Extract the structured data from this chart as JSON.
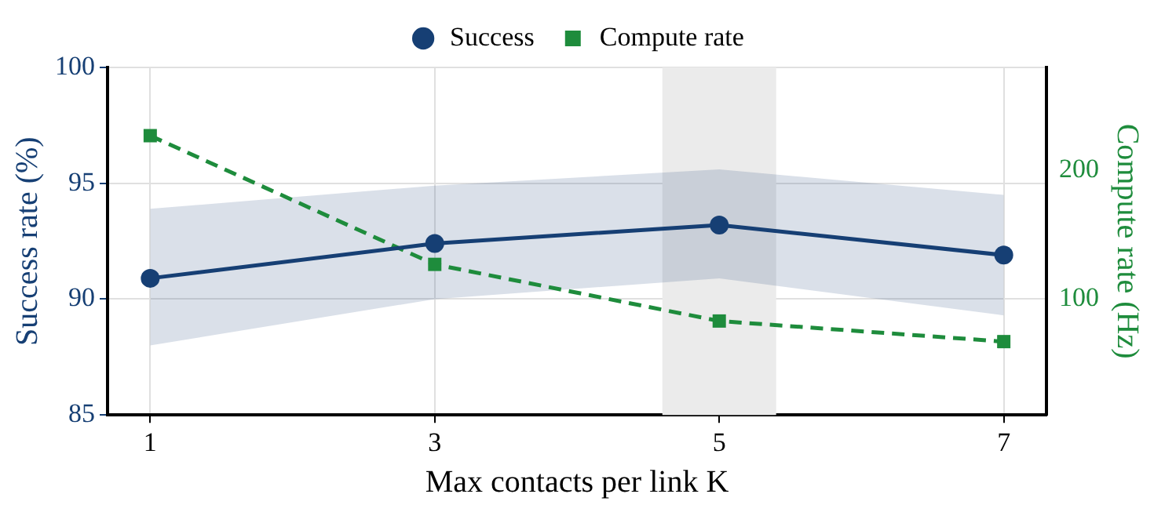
{
  "chart_data": {
    "type": "line",
    "xlabel": "Max contacts per link K",
    "ylabel": "Success rate (%)",
    "y2label": "Compute rate (Hz)",
    "x": [
      1,
      3,
      5,
      7
    ],
    "series": [
      {
        "name": "Success",
        "color": "#163f74",
        "values": [
          90.9,
          92.4,
          93.2,
          91.9
        ],
        "lower": [
          88.0,
          90.0,
          90.9,
          89.3
        ],
        "upper": [
          93.9,
          94.9,
          95.6,
          94.5
        ],
        "marker": "circle",
        "line_style": "solid"
      },
      {
        "name": "Compute rate",
        "color": "#1e8c3c",
        "values": [
          227,
          127,
          83,
          67
        ],
        "axis": "y2",
        "marker": "square",
        "line_style": "dashed"
      }
    ],
    "xlim": [
      0.7,
      7.3
    ],
    "xticks": [
      1,
      3,
      5,
      7
    ],
    "ylim": [
      85,
      100
    ],
    "yticks": [
      85,
      90,
      95,
      100
    ],
    "y2lim": [
      10,
      280
    ],
    "y2ticks": [
      100,
      200
    ],
    "bands": [
      {
        "axis": "x",
        "from": 4.6,
        "to": 5.4,
        "color": "#ebebeb"
      }
    ],
    "grid": true,
    "legend": "top"
  }
}
